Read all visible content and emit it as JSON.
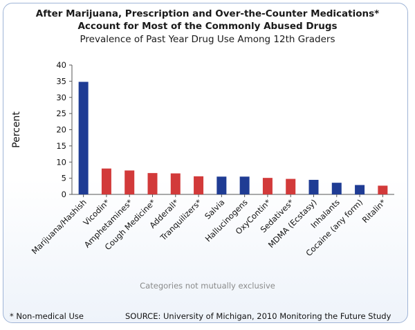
{
  "chart_data": {
    "type": "bar",
    "title": "After Marijuana, Prescription and Over-the-Counter Medications*",
    "title_line2": "Account for Most of the Commonly Abused Drugs",
    "subtitle": "Prevalence of Past Year Drug Use Among 12th Graders",
    "ylabel": "Percent",
    "ylim": [
      0,
      40
    ],
    "yticks": [
      0,
      5,
      10,
      15,
      20,
      25,
      30,
      35,
      40
    ],
    "categories": [
      "Marijuana/Hashish",
      "Vicodin*",
      "Amphetamines*",
      "Cough Medicine*",
      "Adderall*",
      "Tranquilizers*",
      "Salvia",
      "Hallucinogens",
      "OxyContin*",
      "Sedatives*",
      "MDMA (Ecstasy)",
      "Inhalants",
      "Cocaine (any form)",
      "Ritalin*"
    ],
    "values": [
      34.8,
      8.0,
      7.4,
      6.6,
      6.5,
      5.6,
      5.5,
      5.5,
      5.1,
      4.8,
      4.5,
      3.6,
      2.9,
      2.7
    ],
    "bar_types": [
      "illicit",
      "nonmedical",
      "nonmedical",
      "nonmedical",
      "nonmedical",
      "nonmedical",
      "illicit",
      "illicit",
      "nonmedical",
      "nonmedical",
      "illicit",
      "illicit",
      "illicit",
      "nonmedical"
    ],
    "colors": {
      "illicit": "#1f3c94",
      "nonmedical": "#d23a3a"
    },
    "grid": false,
    "legend": "none"
  },
  "note": "Categories not mutually exclusive",
  "footnote": "* Non-medical Use",
  "source": "SOURCE: University of Michigan, 2010 Monitoring the Future Study"
}
